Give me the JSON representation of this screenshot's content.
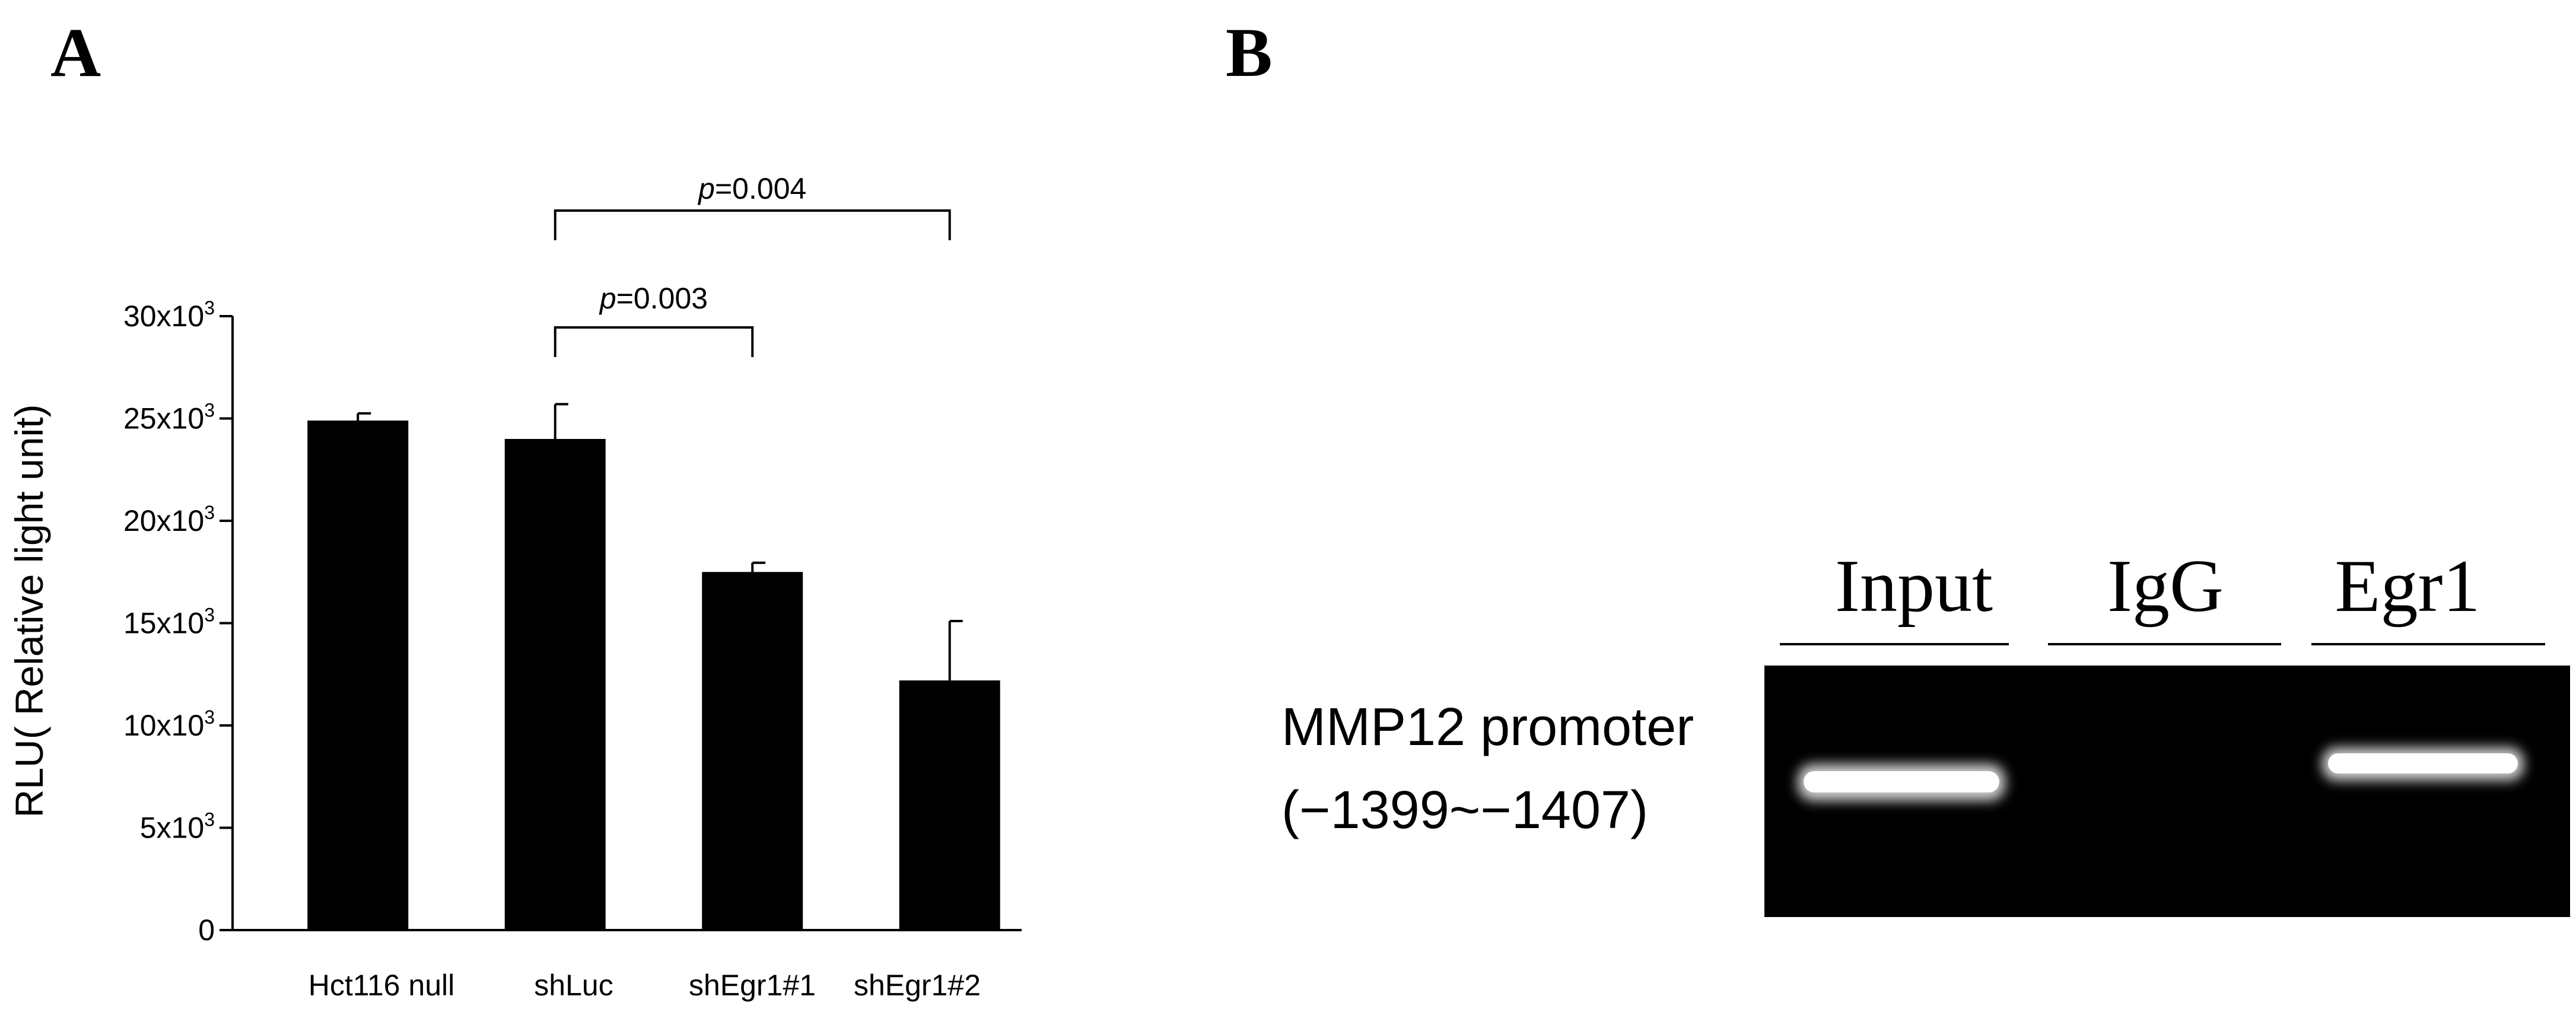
{
  "panel_a": {
    "label": "A",
    "chart_data": {
      "type": "bar",
      "categories": [
        "Hct116 null",
        "shLuc",
        "shEgr1#1",
        "shEgr1#2"
      ],
      "values": [
        24900,
        24000,
        17500,
        12200
      ],
      "errors": [
        350,
        1700,
        450,
        2900
      ],
      "ylabel": "RLU( Relative light unit)",
      "ylim": [
        0,
        30000
      ],
      "yticks": [
        {
          "value": 0,
          "base": "0",
          "exp": ""
        },
        {
          "value": 5000,
          "base": "5x10",
          "exp": "3"
        },
        {
          "value": 10000,
          "base": "10x10",
          "exp": "3"
        },
        {
          "value": 15000,
          "base": "15x10",
          "exp": "3"
        },
        {
          "value": 20000,
          "base": "20x10",
          "exp": "3"
        },
        {
          "value": 25000,
          "base": "25x10",
          "exp": "3"
        },
        {
          "value": 30000,
          "base": "30x10",
          "exp": "3"
        }
      ],
      "bar_color": "#000000",
      "grid": false,
      "annotations": [
        {
          "from": 1,
          "to": 2,
          "p_label": "p",
          "p_value": "=0.003"
        },
        {
          "from": 1,
          "to": 3,
          "p_label": "p",
          "p_value": "=0.004"
        }
      ]
    }
  },
  "panel_b": {
    "label": "B",
    "lanes": [
      "Input",
      "IgG",
      "Egr1"
    ],
    "band_label_line1": "MMP12 promoter",
    "band_label_line2": "(−1399~−1407)",
    "gel_background": "#000000",
    "band_color": "#ffffff",
    "bands_present": [
      true,
      false,
      true
    ]
  }
}
